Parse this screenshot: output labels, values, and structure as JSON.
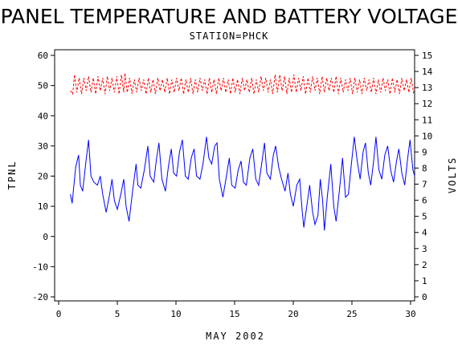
{
  "chart_data": {
    "type": "line",
    "title": "PANEL TEMPERATURE AND BATTERY VOLTAGE",
    "subtitle": "STATION=PHCK",
    "xlabel": "MAY 2002",
    "ylabel_left": "TPNL",
    "ylabel_right": "VOLTS",
    "xlim": [
      0,
      30
    ],
    "ylim_left": [
      -20,
      60
    ],
    "ylim_right": [
      0,
      15
    ],
    "x_ticks": [
      0,
      5,
      10,
      15,
      20,
      25,
      30
    ],
    "y_ticks_left": [
      -20,
      -10,
      0,
      10,
      20,
      30,
      40,
      50,
      60
    ],
    "y_ticks_right": [
      0,
      1,
      2,
      3,
      4,
      5,
      6,
      7,
      8,
      9,
      10,
      11,
      12,
      13,
      14,
      15
    ],
    "grid": false,
    "series": [
      {
        "axis": "left",
        "color": "#0000ff",
        "style": "solid",
        "points": [
          [
            1.0,
            14
          ],
          [
            1.15,
            11
          ],
          [
            1.45,
            23
          ],
          [
            1.7,
            27
          ],
          [
            1.85,
            17
          ],
          [
            2.05,
            15
          ],
          [
            2.3,
            24
          ],
          [
            2.55,
            32
          ],
          [
            2.75,
            20
          ],
          [
            3.0,
            18
          ],
          [
            3.3,
            17
          ],
          [
            3.55,
            20
          ],
          [
            3.75,
            14
          ],
          [
            4.05,
            8
          ],
          [
            4.35,
            14
          ],
          [
            4.55,
            19
          ],
          [
            4.75,
            12
          ],
          [
            5.0,
            9
          ],
          [
            5.3,
            14
          ],
          [
            5.55,
            19
          ],
          [
            5.75,
            10
          ],
          [
            6.0,
            5
          ],
          [
            6.3,
            15
          ],
          [
            6.6,
            24
          ],
          [
            6.75,
            17
          ],
          [
            7.0,
            16
          ],
          [
            7.3,
            22
          ],
          [
            7.6,
            30
          ],
          [
            7.8,
            20
          ],
          [
            8.1,
            18
          ],
          [
            8.35,
            26
          ],
          [
            8.55,
            31
          ],
          [
            8.8,
            19
          ],
          [
            9.1,
            15
          ],
          [
            9.35,
            23
          ],
          [
            9.6,
            29
          ],
          [
            9.8,
            21
          ],
          [
            10.05,
            20
          ],
          [
            10.3,
            28
          ],
          [
            10.55,
            32
          ],
          [
            10.8,
            20
          ],
          [
            11.05,
            19
          ],
          [
            11.3,
            26
          ],
          [
            11.55,
            29
          ],
          [
            11.75,
            20
          ],
          [
            12.05,
            19
          ],
          [
            12.3,
            24
          ],
          [
            12.6,
            33
          ],
          [
            12.8,
            26
          ],
          [
            13.05,
            24
          ],
          [
            13.3,
            30
          ],
          [
            13.5,
            31
          ],
          [
            13.7,
            19
          ],
          [
            14.0,
            13
          ],
          [
            14.3,
            20
          ],
          [
            14.55,
            26
          ],
          [
            14.75,
            17
          ],
          [
            15.05,
            16
          ],
          [
            15.3,
            22
          ],
          [
            15.55,
            25
          ],
          [
            15.75,
            18
          ],
          [
            16.0,
            17
          ],
          [
            16.3,
            26
          ],
          [
            16.55,
            29
          ],
          [
            16.8,
            19
          ],
          [
            17.05,
            17
          ],
          [
            17.3,
            24
          ],
          [
            17.55,
            31
          ],
          [
            17.75,
            21
          ],
          [
            18.05,
            19
          ],
          [
            18.3,
            27
          ],
          [
            18.5,
            30
          ],
          [
            18.75,
            23
          ],
          [
            19.0,
            19
          ],
          [
            19.3,
            15
          ],
          [
            19.55,
            21
          ],
          [
            19.75,
            14
          ],
          [
            20.0,
            10
          ],
          [
            20.3,
            17
          ],
          [
            20.55,
            19
          ],
          [
            20.75,
            9
          ],
          [
            20.9,
            3
          ],
          [
            21.15,
            10
          ],
          [
            21.4,
            17
          ],
          [
            21.65,
            8
          ],
          [
            21.85,
            4
          ],
          [
            22.1,
            7
          ],
          [
            22.3,
            19
          ],
          [
            22.5,
            12
          ],
          [
            22.65,
            2
          ],
          [
            22.9,
            13
          ],
          [
            23.2,
            24
          ],
          [
            23.45,
            10
          ],
          [
            23.65,
            5
          ],
          [
            23.95,
            16
          ],
          [
            24.2,
            26
          ],
          [
            24.45,
            13
          ],
          [
            24.7,
            14
          ],
          [
            24.95,
            24
          ],
          [
            25.2,
            33
          ],
          [
            25.45,
            25
          ],
          [
            25.7,
            19
          ],
          [
            25.95,
            28
          ],
          [
            26.15,
            31
          ],
          [
            26.4,
            21
          ],
          [
            26.6,
            17
          ],
          [
            26.85,
            25
          ],
          [
            27.05,
            33
          ],
          [
            27.3,
            22
          ],
          [
            27.55,
            19
          ],
          [
            27.8,
            27
          ],
          [
            28.05,
            30
          ],
          [
            28.3,
            22
          ],
          [
            28.55,
            18
          ],
          [
            28.8,
            25
          ],
          [
            29.0,
            29
          ],
          [
            29.25,
            21
          ],
          [
            29.5,
            17
          ],
          [
            29.75,
            26
          ],
          [
            29.95,
            32
          ],
          [
            30.2,
            22
          ],
          [
            30.35,
            20
          ]
        ]
      },
      {
        "axis": "right",
        "color": "#ff0000",
        "style": "dashed",
        "points": [
          [
            1.0,
            12.8
          ],
          [
            1.2,
            12.6
          ],
          [
            1.35,
            13.8
          ],
          [
            1.55,
            12.7
          ],
          [
            1.75,
            13.6
          ],
          [
            1.95,
            12.6
          ],
          [
            2.15,
            13.6
          ],
          [
            2.35,
            12.8
          ],
          [
            2.55,
            13.7
          ],
          [
            2.75,
            12.7
          ],
          [
            2.95,
            13.6
          ],
          [
            3.15,
            12.6
          ],
          [
            3.35,
            13.7
          ],
          [
            3.55,
            12.8
          ],
          [
            3.75,
            13.6
          ],
          [
            3.95,
            12.6
          ],
          [
            4.15,
            13.7
          ],
          [
            4.35,
            12.8
          ],
          [
            4.55,
            13.6
          ],
          [
            4.75,
            12.7
          ],
          [
            4.95,
            13.7
          ],
          [
            5.15,
            12.6
          ],
          [
            5.35,
            13.8
          ],
          [
            5.55,
            12.7
          ],
          [
            5.65,
            13.9
          ],
          [
            5.85,
            12.7
          ],
          [
            6.05,
            13.6
          ],
          [
            6.25,
            12.6
          ],
          [
            6.45,
            13.5
          ],
          [
            6.65,
            12.7
          ],
          [
            6.85,
            13.6
          ],
          [
            7.05,
            12.8
          ],
          [
            7.25,
            13.5
          ],
          [
            7.45,
            12.6
          ],
          [
            7.65,
            13.6
          ],
          [
            7.85,
            12.7
          ],
          [
            8.05,
            13.5
          ],
          [
            8.25,
            12.6
          ],
          [
            8.45,
            13.6
          ],
          [
            8.65,
            12.8
          ],
          [
            8.85,
            13.5
          ],
          [
            9.05,
            12.7
          ],
          [
            9.25,
            13.6
          ],
          [
            9.45,
            12.6
          ],
          [
            9.65,
            13.5
          ],
          [
            9.85,
            12.7
          ],
          [
            10.05,
            13.6
          ],
          [
            10.25,
            12.8
          ],
          [
            10.45,
            13.6
          ],
          [
            10.65,
            12.6
          ],
          [
            10.85,
            13.5
          ],
          [
            11.05,
            12.7
          ],
          [
            11.25,
            13.6
          ],
          [
            11.45,
            12.6
          ],
          [
            11.65,
            13.5
          ],
          [
            11.85,
            12.7
          ],
          [
            12.05,
            13.6
          ],
          [
            12.25,
            12.8
          ],
          [
            12.45,
            13.5
          ],
          [
            12.65,
            12.6
          ],
          [
            12.85,
            13.6
          ],
          [
            13.05,
            12.7
          ],
          [
            13.25,
            13.5
          ],
          [
            13.45,
            12.6
          ],
          [
            13.65,
            13.6
          ],
          [
            13.85,
            12.8
          ],
          [
            14.05,
            13.6
          ],
          [
            14.25,
            12.7
          ],
          [
            14.45,
            13.5
          ],
          [
            14.65,
            12.6
          ],
          [
            14.85,
            13.6
          ],
          [
            15.05,
            12.7
          ],
          [
            15.25,
            13.5
          ],
          [
            15.45,
            12.6
          ],
          [
            15.65,
            13.6
          ],
          [
            15.85,
            12.8
          ],
          [
            16.05,
            13.5
          ],
          [
            16.25,
            12.7
          ],
          [
            16.45,
            13.6
          ],
          [
            16.65,
            12.6
          ],
          [
            16.85,
            13.5
          ],
          [
            17.05,
            12.7
          ],
          [
            17.25,
            13.7
          ],
          [
            17.45,
            12.8
          ],
          [
            17.65,
            13.6
          ],
          [
            17.85,
            12.7
          ],
          [
            18.05,
            13.5
          ],
          [
            18.25,
            12.6
          ],
          [
            18.45,
            13.8
          ],
          [
            18.65,
            12.7
          ],
          [
            18.85,
            13.8
          ],
          [
            19.05,
            12.8
          ],
          [
            19.25,
            13.7
          ],
          [
            19.45,
            12.6
          ],
          [
            19.65,
            13.6
          ],
          [
            19.85,
            12.7
          ],
          [
            20.05,
            13.8
          ],
          [
            20.25,
            12.7
          ],
          [
            20.45,
            13.6
          ],
          [
            20.65,
            12.8
          ],
          [
            20.85,
            13.7
          ],
          [
            21.05,
            12.6
          ],
          [
            21.25,
            13.6
          ],
          [
            21.45,
            12.7
          ],
          [
            21.65,
            13.7
          ],
          [
            21.85,
            12.8
          ],
          [
            22.05,
            13.6
          ],
          [
            22.25,
            12.6
          ],
          [
            22.45,
            13.7
          ],
          [
            22.65,
            12.7
          ],
          [
            22.85,
            13.6
          ],
          [
            23.05,
            12.8
          ],
          [
            23.25,
            13.6
          ],
          [
            23.45,
            12.7
          ],
          [
            23.65,
            13.7
          ],
          [
            23.85,
            12.6
          ],
          [
            24.05,
            13.6
          ],
          [
            24.25,
            12.7
          ],
          [
            24.45,
            13.5
          ],
          [
            24.65,
            12.8
          ],
          [
            24.85,
            13.6
          ],
          [
            25.05,
            12.6
          ],
          [
            25.25,
            13.6
          ],
          [
            25.45,
            12.7
          ],
          [
            25.65,
            13.5
          ],
          [
            25.85,
            12.6
          ],
          [
            26.05,
            13.6
          ],
          [
            26.25,
            12.8
          ],
          [
            26.45,
            13.5
          ],
          [
            26.65,
            12.7
          ],
          [
            26.85,
            13.6
          ],
          [
            27.05,
            12.6
          ],
          [
            27.25,
            13.5
          ],
          [
            27.45,
            12.7
          ],
          [
            27.65,
            13.6
          ],
          [
            27.85,
            12.8
          ],
          [
            28.05,
            13.5
          ],
          [
            28.25,
            12.6
          ],
          [
            28.45,
            13.6
          ],
          [
            28.65,
            12.7
          ],
          [
            28.85,
            13.5
          ],
          [
            29.05,
            12.6
          ],
          [
            29.25,
            13.6
          ],
          [
            29.45,
            12.8
          ],
          [
            29.65,
            13.5
          ],
          [
            29.85,
            12.7
          ],
          [
            30.05,
            13.6
          ],
          [
            30.25,
            12.7
          ],
          [
            30.35,
            12.9
          ]
        ]
      }
    ]
  }
}
